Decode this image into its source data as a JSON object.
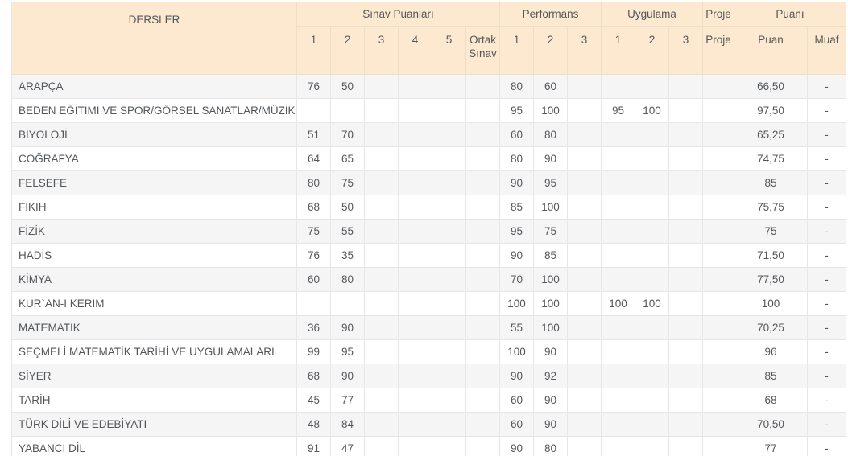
{
  "table": {
    "header": {
      "dersler": "DERSLER",
      "groups": [
        {
          "label": "Sınav Puanları"
        },
        {
          "label": "Performans"
        },
        {
          "label": "Uygulama"
        },
        {
          "label": "Proje"
        },
        {
          "label": "Puanı"
        }
      ],
      "sub": [
        "1",
        "2",
        "3",
        "4",
        "5",
        "Ortak Sınav",
        "1",
        "2",
        "3",
        "1",
        "2",
        "3",
        "Proje",
        "Puan",
        "Muaf"
      ]
    },
    "rows": [
      {
        "ders": "ARAPÇA",
        "sinav": [
          "76",
          "50",
          "",
          "",
          "",
          ""
        ],
        "performans": [
          "80",
          "60",
          ""
        ],
        "uygulama": [
          "",
          "",
          ""
        ],
        "proje": "",
        "puan": "66,50",
        "muaf": "-"
      },
      {
        "ders": "BEDEN EĞİTİMİ VE SPOR/GÖRSEL SANATLAR/MÜZİK",
        "sinav": [
          "",
          "",
          "",
          "",
          "",
          ""
        ],
        "performans": [
          "95",
          "100",
          ""
        ],
        "uygulama": [
          "95",
          "100",
          ""
        ],
        "proje": "",
        "puan": "97,50",
        "muaf": "-"
      },
      {
        "ders": "BİYOLOJİ",
        "sinav": [
          "51",
          "70",
          "",
          "",
          "",
          ""
        ],
        "performans": [
          "60",
          "80",
          ""
        ],
        "uygulama": [
          "",
          "",
          ""
        ],
        "proje": "",
        "puan": "65,25",
        "muaf": "-"
      },
      {
        "ders": "COĞRAFYA",
        "sinav": [
          "64",
          "65",
          "",
          "",
          "",
          ""
        ],
        "performans": [
          "80",
          "90",
          ""
        ],
        "uygulama": [
          "",
          "",
          ""
        ],
        "proje": "",
        "puan": "74,75",
        "muaf": "-"
      },
      {
        "ders": "FELSEFE",
        "sinav": [
          "80",
          "75",
          "",
          "",
          "",
          ""
        ],
        "performans": [
          "90",
          "95",
          ""
        ],
        "uygulama": [
          "",
          "",
          ""
        ],
        "proje": "",
        "puan": "85",
        "muaf": "-"
      },
      {
        "ders": "FIKIH",
        "sinav": [
          "68",
          "50",
          "",
          "",
          "",
          ""
        ],
        "performans": [
          "85",
          "100",
          ""
        ],
        "uygulama": [
          "",
          "",
          ""
        ],
        "proje": "",
        "puan": "75,75",
        "muaf": "-"
      },
      {
        "ders": "FİZİK",
        "sinav": [
          "75",
          "55",
          "",
          "",
          "",
          ""
        ],
        "performans": [
          "95",
          "75",
          ""
        ],
        "uygulama": [
          "",
          "",
          ""
        ],
        "proje": "",
        "puan": "75",
        "muaf": "-"
      },
      {
        "ders": "HADİS",
        "sinav": [
          "76",
          "35",
          "",
          "",
          "",
          ""
        ],
        "performans": [
          "90",
          "85",
          ""
        ],
        "uygulama": [
          "",
          "",
          ""
        ],
        "proje": "",
        "puan": "71,50",
        "muaf": "-"
      },
      {
        "ders": "KİMYA",
        "sinav": [
          "60",
          "80",
          "",
          "",
          "",
          ""
        ],
        "performans": [
          "70",
          "100",
          ""
        ],
        "uygulama": [
          "",
          "",
          ""
        ],
        "proje": "",
        "puan": "77,50",
        "muaf": "-"
      },
      {
        "ders": "KUR`AN-I KERİM",
        "sinav": [
          "",
          "",
          "",
          "",
          "",
          ""
        ],
        "performans": [
          "100",
          "100",
          ""
        ],
        "uygulama": [
          "100",
          "100",
          ""
        ],
        "proje": "",
        "puan": "100",
        "muaf": "-"
      },
      {
        "ders": "MATEMATİK",
        "sinav": [
          "36",
          "90",
          "",
          "",
          "",
          ""
        ],
        "performans": [
          "55",
          "100",
          ""
        ],
        "uygulama": [
          "",
          "",
          ""
        ],
        "proje": "",
        "puan": "70,25",
        "muaf": "-"
      },
      {
        "ders": "SEÇMELİ MATEMATİK TARİHİ VE UYGULAMALARI",
        "sinav": [
          "99",
          "95",
          "",
          "",
          "",
          ""
        ],
        "performans": [
          "100",
          "90",
          ""
        ],
        "uygulama": [
          "",
          "",
          ""
        ],
        "proje": "",
        "puan": "96",
        "muaf": "-"
      },
      {
        "ders": "SİYER",
        "sinav": [
          "68",
          "90",
          "",
          "",
          "",
          ""
        ],
        "performans": [
          "90",
          "92",
          ""
        ],
        "uygulama": [
          "",
          "",
          ""
        ],
        "proje": "",
        "puan": "85",
        "muaf": "-"
      },
      {
        "ders": "TARİH",
        "sinav": [
          "45",
          "77",
          "",
          "",
          "",
          ""
        ],
        "performans": [
          "60",
          "90",
          ""
        ],
        "uygulama": [
          "",
          "",
          ""
        ],
        "proje": "",
        "puan": "68",
        "muaf": "-"
      },
      {
        "ders": "TÜRK DİLİ VE EDEBİYATI",
        "sinav": [
          "48",
          "84",
          "",
          "",
          "",
          ""
        ],
        "performans": [
          "60",
          "90",
          ""
        ],
        "uygulama": [
          "",
          "",
          ""
        ],
        "proje": "",
        "puan": "70,50",
        "muaf": "-"
      },
      {
        "ders": "YABANCI DİL",
        "sinav": [
          "91",
          "47",
          "",
          "",
          "",
          ""
        ],
        "performans": [
          "90",
          "80",
          ""
        ],
        "uygulama": [
          "",
          "",
          ""
        ],
        "proje": "",
        "puan": "77",
        "muaf": "-"
      }
    ]
  },
  "colors": {
    "header_bg": "#fce9cf",
    "row_alt_bg": "#f5f5f6",
    "row_bg": "#ffffff",
    "text": "#53575b",
    "border": "#e7e7e9",
    "bottom_strip": "#aeb3b7"
  }
}
